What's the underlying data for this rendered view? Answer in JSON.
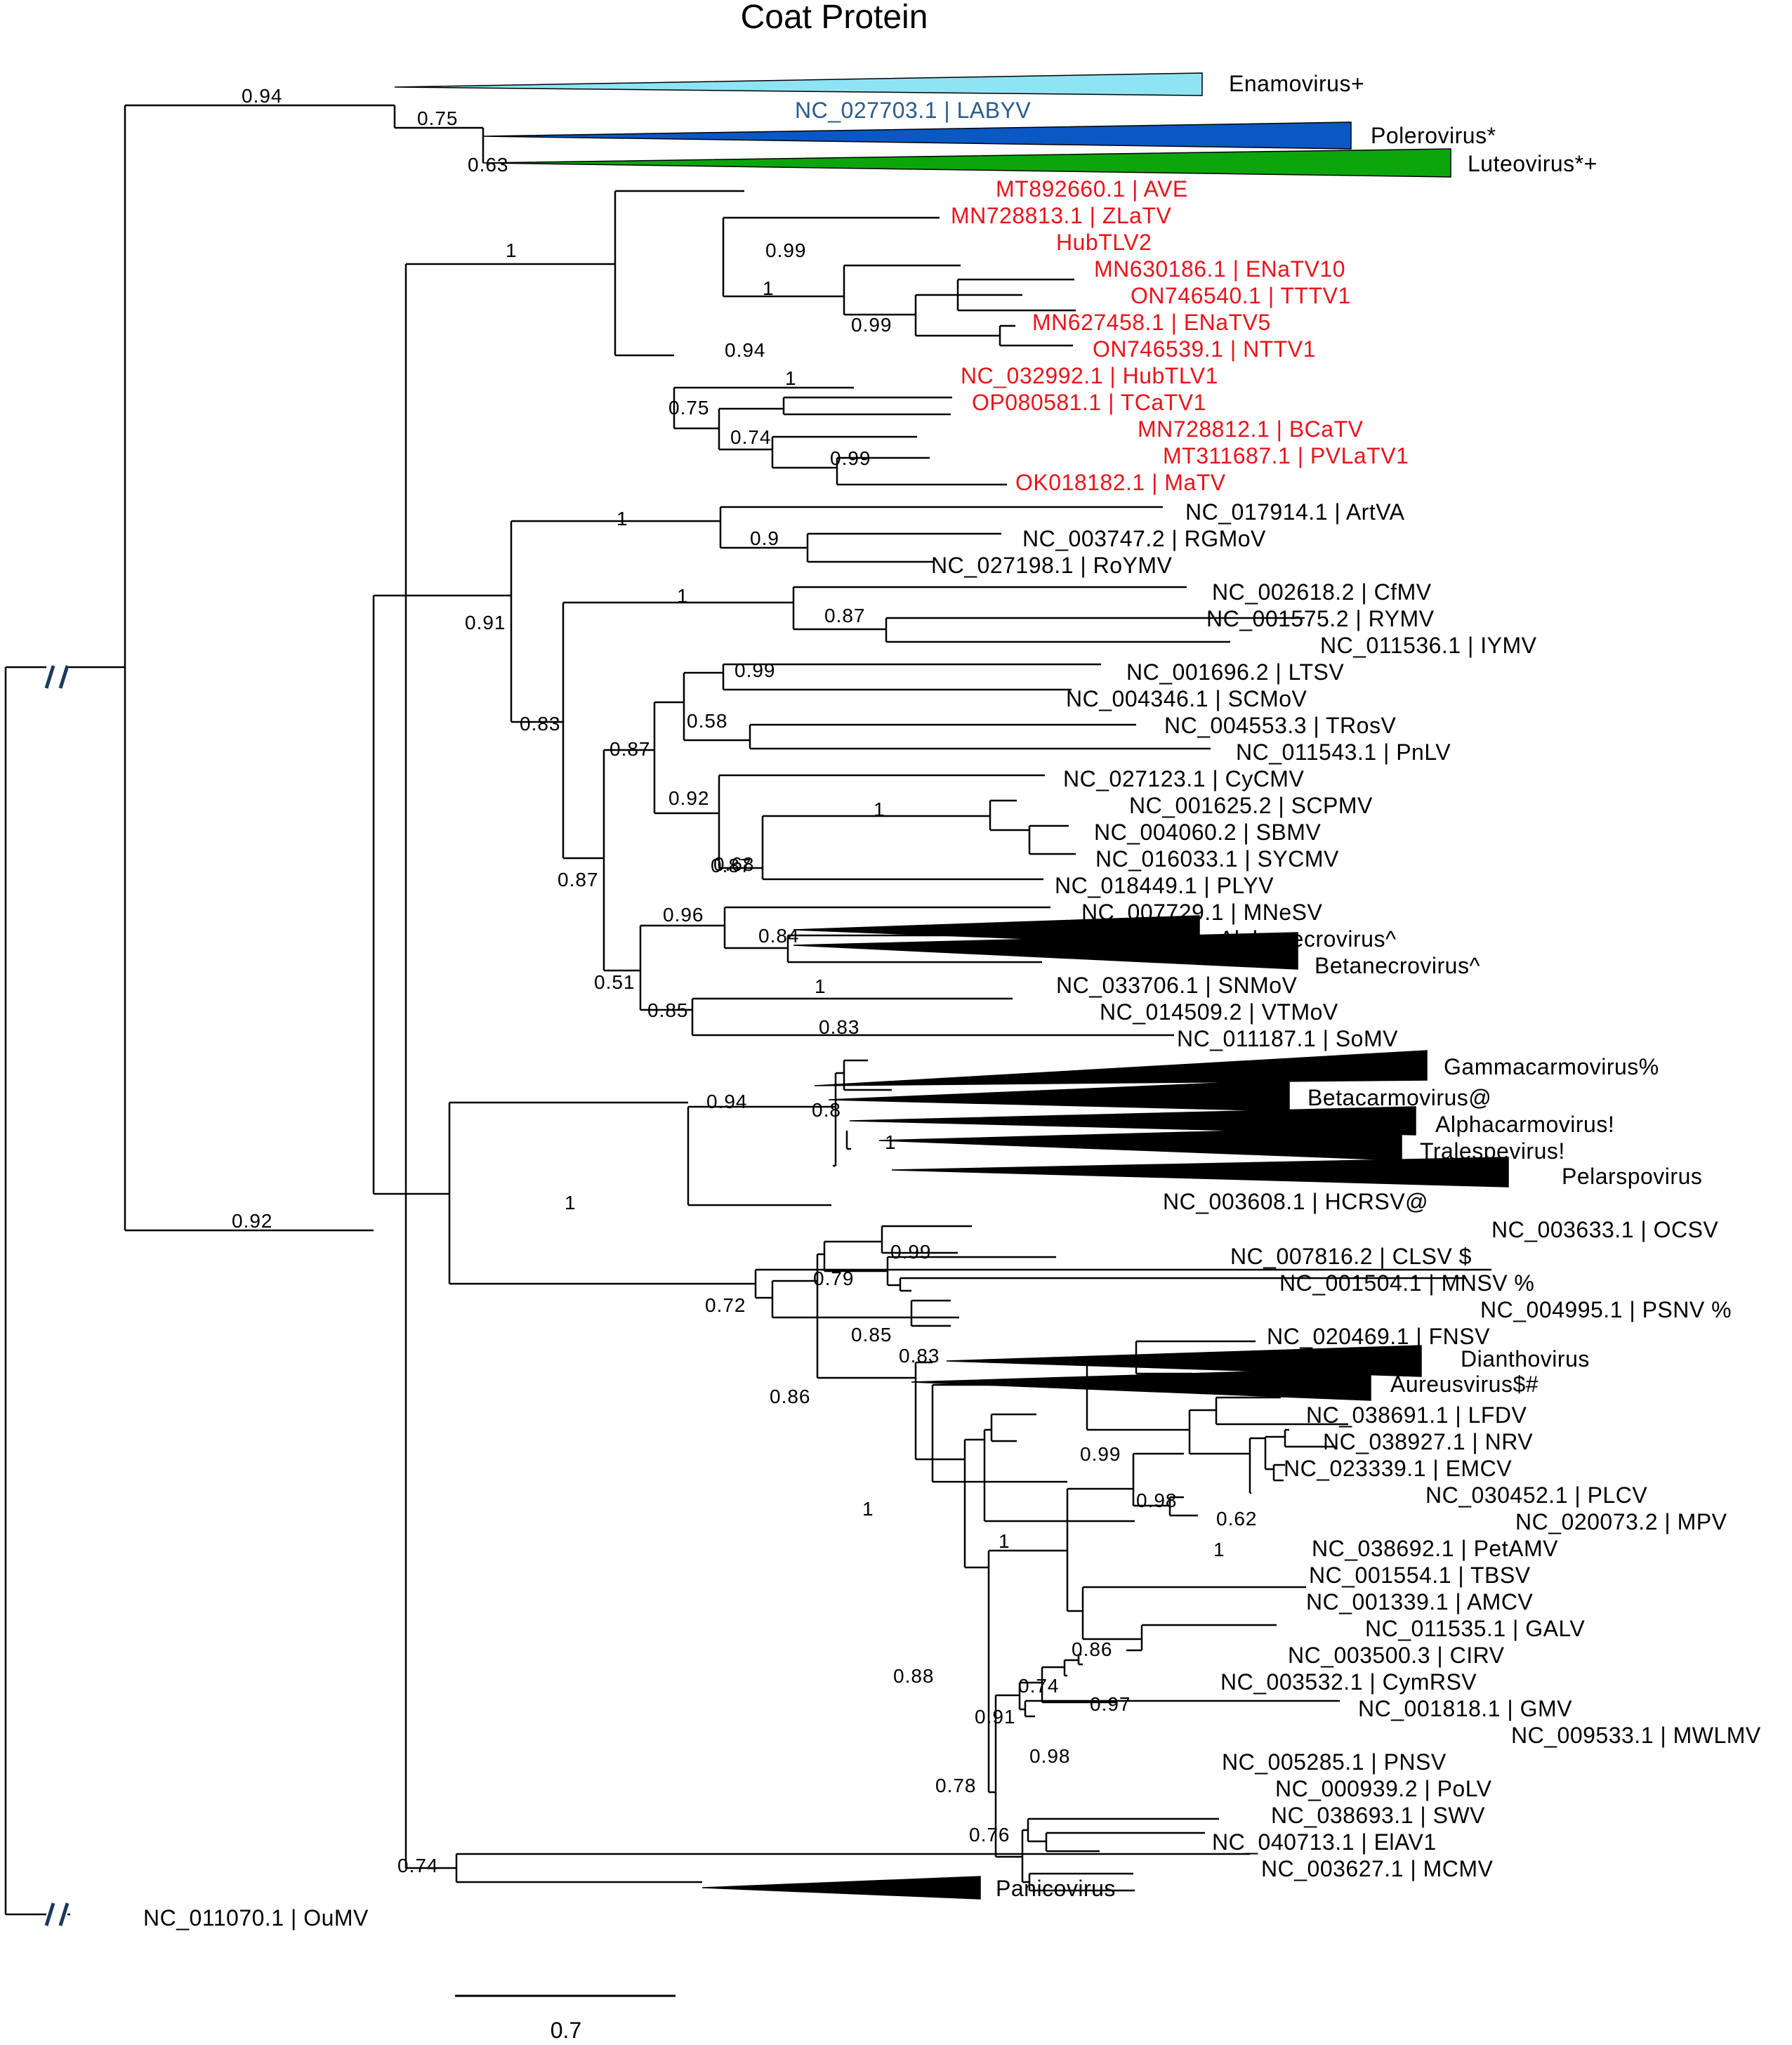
{
  "title": "Coat Protein",
  "colors": {
    "red": "#e8141c",
    "blue": "#2a5a8c",
    "enamo": "#8fe4f4",
    "enamo_stroke": "#3ab4d8",
    "polero": "#0a58c4",
    "luteo": "#0ca60c",
    "break": "#1a3a5c",
    "black": "#000000"
  },
  "collapsed_clades": [
    {
      "name": "Enamovirus+",
      "color_key": "enamo"
    },
    {
      "name": "Polerovirus*",
      "color_key": "polero"
    },
    {
      "name": "Luteovirus*+",
      "color_key": "luteo"
    },
    {
      "name": "Alphanecrovirus^",
      "color_key": "black"
    },
    {
      "name": "Betanecrovirus^",
      "color_key": "black"
    },
    {
      "name": "Gammacarmovirus%",
      "color_key": "black"
    },
    {
      "name": "Betacarmovirus@",
      "color_key": "black"
    },
    {
      "name": "Alphacarmovirus!",
      "color_key": "black"
    },
    {
      "name": "Tralespevirus!",
      "color_key": "black"
    },
    {
      "name": "Pelarspovirus",
      "color_key": "black"
    },
    {
      "name": "Dianthovirus",
      "color_key": "black"
    },
    {
      "name": "Aureusvirus$#",
      "color_key": "black"
    },
    {
      "name": "Panicovirus",
      "color_key": "black"
    }
  ],
  "leaves": [
    {
      "label": "NC_027703.1 | LABYV",
      "color": "blue"
    },
    {
      "label": "MT892660.1 | AVE",
      "color": "red"
    },
    {
      "label": "MN728813.1 | ZLaTV",
      "color": "red"
    },
    {
      "label": "HubTLV2",
      "color": "red"
    },
    {
      "label": "MN630186.1 | ENaTV10",
      "color": "red"
    },
    {
      "label": "ON746540.1 | TTTV1",
      "color": "red"
    },
    {
      "label": "MN627458.1 | ENaTV5",
      "color": "red"
    },
    {
      "label": "ON746539.1 | NTTV1",
      "color": "red"
    },
    {
      "label": "NC_032992.1 | HubTLV1",
      "color": "red"
    },
    {
      "label": "OP080581.1 | TCaTV1",
      "color": "red"
    },
    {
      "label": "MN728812.1 | BCaTV",
      "color": "red"
    },
    {
      "label": "MT311687.1 | PVLaTV1",
      "color": "red"
    },
    {
      "label": "OK018182.1 | MaTV",
      "color": "red"
    },
    {
      "label": "NC_017914.1 | ArtVA",
      "color": "black"
    },
    {
      "label": "NC_003747.2 | RGMoV",
      "color": "black"
    },
    {
      "label": "NC_027198.1 | RoYMV",
      "color": "black"
    },
    {
      "label": "NC_002618.2 | CfMV",
      "color": "black"
    },
    {
      "label": "NC_001575.2 | RYMV",
      "color": "black"
    },
    {
      "label": "NC_011536.1 | IYMV",
      "color": "black"
    },
    {
      "label": "NC_001696.2 | LTSV",
      "color": "black"
    },
    {
      "label": "NC_004346.1 | SCMoV",
      "color": "black"
    },
    {
      "label": "NC_004553.3 | TRosV",
      "color": "black"
    },
    {
      "label": "NC_011543.1 | PnLV",
      "color": "black"
    },
    {
      "label": "NC_027123.1 | CyCMV",
      "color": "black"
    },
    {
      "label": "NC_001625.2 | SCPMV",
      "color": "black"
    },
    {
      "label": "NC_004060.2 | SBMV",
      "color": "black"
    },
    {
      "label": "NC_016033.1 | SYCMV",
      "color": "black"
    },
    {
      "label": "NC_018449.1 | PLYV",
      "color": "black"
    },
    {
      "label": "NC_007729.1 | MNeSV",
      "color": "black"
    },
    {
      "label": "NC_033706.1 | SNMoV",
      "color": "black"
    },
    {
      "label": "NC_014509.2 | VTMoV",
      "color": "black"
    },
    {
      "label": "NC_011187.1 | SoMV",
      "color": "black"
    },
    {
      "label": "NC_003608.1 | HCRSV@",
      "color": "black"
    },
    {
      "label": "NC_003633.1 | OCSV",
      "color": "black"
    },
    {
      "label": "NC_007816.2 | CLSV $",
      "color": "black"
    },
    {
      "label": "NC_001504.1 | MNSV %",
      "color": "black"
    },
    {
      "label": "NC_004995.1 | PSNV %",
      "color": "black"
    },
    {
      "label": "NC_020469.1 | FNSV",
      "color": "black"
    },
    {
      "label": "NC_038691.1 | LFDV",
      "color": "black"
    },
    {
      "label": "NC_038927.1 | NRV",
      "color": "black"
    },
    {
      "label": "NC_023339.1 | EMCV",
      "color": "black"
    },
    {
      "label": "NC_030452.1 | PLCV",
      "color": "black"
    },
    {
      "label": "NC_020073.2 | MPV",
      "color": "black"
    },
    {
      "label": "NC_038692.1 | PetAMV",
      "color": "black"
    },
    {
      "label": "NC_001554.1 | TBSV",
      "color": "black"
    },
    {
      "label": "NC_001339.1 | AMCV",
      "color": "black"
    },
    {
      "label": "NC_011535.1 | GALV",
      "color": "black"
    },
    {
      "label": "NC_003500.3 | CIRV",
      "color": "black"
    },
    {
      "label": "NC_003532.1 | CymRSV",
      "color": "black"
    },
    {
      "label": "NC_001818.1 | GMV",
      "color": "black"
    },
    {
      "label": "NC_009533.1 | MWLMV",
      "color": "black"
    },
    {
      "label": "NC_005285.1 | PNSV",
      "color": "black"
    },
    {
      "label": "NC_000939.2 | PoLV",
      "color": "black"
    },
    {
      "label": "NC_038693.1 | SWV",
      "color": "black"
    },
    {
      "label": "NC_040713.1 | ElAV1",
      "color": "black"
    },
    {
      "label": "NC_003627.1 | MCMV",
      "color": "black"
    },
    {
      "label": "NC_011070.1 | OuMV",
      "color": "black"
    }
  ],
  "supports": [
    "0.94",
    "0.75",
    "0.63",
    "1",
    "0.99",
    "1",
    "0.99",
    "0.94",
    "1",
    "0.75",
    "0.74",
    "0.99",
    "1",
    "0.9",
    "0.91",
    "1",
    "0.87",
    "0.83",
    "0.99",
    "0.58",
    "0.87",
    "0.92",
    "1",
    "0.87",
    "0.68",
    "0.87",
    "0.96",
    "0.84",
    "0.51",
    "1",
    "0.85",
    "0.83",
    "0.92",
    "0.94",
    "0.8",
    "1",
    "1",
    "0.99",
    "0.79",
    "0.72",
    "0.85",
    "0.83",
    "0.86",
    "1",
    "0.99",
    "0.98",
    "0.62",
    "1",
    "1",
    "0.86",
    "0.88",
    "0.74",
    "0.97",
    "0.91",
    "0.98",
    "0.78",
    "0.76",
    "0.74"
  ],
  "scale_bar": {
    "label": "0.7"
  }
}
